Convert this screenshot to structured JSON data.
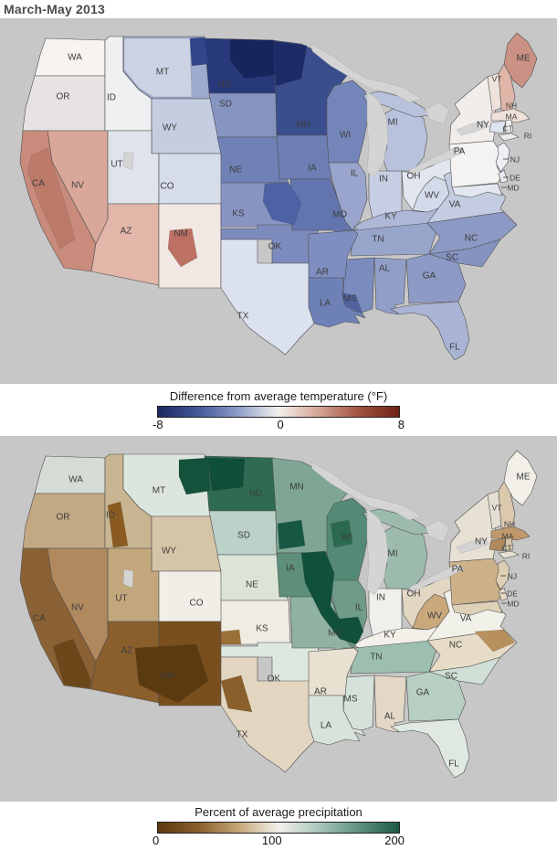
{
  "title": "March-May 2013",
  "colors": {
    "page_background": "#ffffff",
    "map_background": "#c7c7c7",
    "water": "#d4d4d4",
    "state_border": "#4e4e4e",
    "label_text": "#3d3d3d"
  },
  "maps": [
    {
      "id": "temperature",
      "legend": {
        "title": "Difference from average temperature (°F)",
        "ticks": [
          "-8",
          "0",
          "8"
        ],
        "gradient": [
          "#1c2a5e",
          "#44589b",
          "#8d9cc9",
          "#f4f1ee",
          "#d3a392",
          "#a35341",
          "#6e2313"
        ]
      },
      "states": {
        "WA": "#f7f3f0",
        "OR": "#e7e3e3",
        "CA": "#c98b7c",
        "NV": "#d9a89b",
        "ID": "#eef0f2",
        "MT": "#9dabce",
        "WY": "#c5cde1",
        "UT": "#dfe3ec",
        "CO": "#d6dcea",
        "AZ": "#e2b6a9",
        "NM": "#f2e8e3",
        "ND": "#27397a",
        "SD": "#8694c2",
        "NE": "#7081b6",
        "KS": "#8895c4",
        "OK": "#7b8bbd",
        "TX": "#dce1ee",
        "MN": "#3a4d8d",
        "IA": "#6c7eb4",
        "MO": "#6375ae",
        "AR": "#7e8ec0",
        "LA": "#6e81b7",
        "WI": "#7485b9",
        "IL": "#99a5cc",
        "MI": "#b9c2dc",
        "IN": "#c6cee3",
        "OH": "#e2e6f0",
        "KY": "#aeb8d6",
        "TN": "#98a5cb",
        "MS": "#7a8bbe",
        "AL": "#919fc8",
        "GA": "#8c9ac5",
        "FL": "#aab4d5",
        "SC": "#8593c1",
        "NC": "#8c99c4",
        "VA": "#c3cce1",
        "WV": "#d3daea",
        "PA": "#f4f3f2",
        "NY": "#f1edeb",
        "VT": "#efe2dc",
        "NH": "#dfb5a8",
        "ME": "#cb9184",
        "MA": "#efe0da",
        "CT": "#dde2ee",
        "RI": "#f2efed",
        "NJ": "#edeff5",
        "DE": "#e7eaf2",
        "MD": "#e3e7f0"
      },
      "patches": {
        "t_mt_w": "#ccd3e5",
        "t_mt_ne": "#31458a",
        "t_nd_e": "#17255f",
        "t_mn_nw": "#1d2c69",
        "t_ks_ne": "#4d61a4",
        "t_la_se": "#51629f",
        "t_nm_c": "#bd7164",
        "t_ca_i": "#bd7a69"
      },
      "labels": [
        "WA",
        "OR",
        "CA",
        "NV",
        "ID",
        "MT",
        "WY",
        "UT",
        "CO",
        "AZ",
        "NM",
        "ND",
        "SD",
        "NE",
        "KS",
        "OK",
        "TX",
        "MN",
        "IA",
        "MO",
        "AR",
        "LA",
        "MS",
        "AL",
        "WI",
        "IL",
        "MI",
        "IN",
        "OH",
        "KY",
        "TN",
        "GA",
        "FL",
        "SC",
        "NC",
        "VA",
        "WV",
        "PA",
        "NY",
        "VT",
        "NH",
        "ME",
        "MA",
        "CT",
        "RI",
        "NJ",
        "DE",
        "MD"
      ]
    },
    {
      "id": "precipitation",
      "legend": {
        "title": "Percent of average precipitation",
        "ticks": [
          "0",
          "100",
          "200"
        ],
        "gradient": [
          "#5c3a10",
          "#8a5f2c",
          "#c4a574",
          "#f2f0ea",
          "#a8c6ba",
          "#5f9282",
          "#1c5a45"
        ]
      },
      "states": {
        "WA": "#d5dcd4",
        "OR": "#c2a883",
        "CA": "#8a6134",
        "NV": "#b08a5e",
        "ID": "#c9b592",
        "MT": "#dde6de",
        "WY": "#d6c4a8",
        "UT": "#c2a77c",
        "CO": "#f1eee8",
        "AZ": "#8a5f2c",
        "NM": "#7a4f1e",
        "ND": "#2e6b52",
        "SD": "#bcd2c8",
        "NE": "#dce4d8",
        "KS": "#f0ece2",
        "OK": "#dfe8df",
        "TX": "#e2d6c1",
        "MN": "#7fa694",
        "IA": "#5d8f7b",
        "MO": "#8fb2a2",
        "AR": "#e8e0d0",
        "LA": "#d8e3d9",
        "WI": "#548a75",
        "IL": "#6f9b88",
        "MI": "#9cbbad",
        "IN": "#edf0eb",
        "OH": "#e2d7c3",
        "KY": "#f2f0e8",
        "TN": "#9dbfb0",
        "MS": "#d5e2d9",
        "AL": "#e2d8c5",
        "GA": "#b8cfc3",
        "FL": "#dfe9e2",
        "SC": "#cfdfd5",
        "NC": "#e7dcc7",
        "VA": "#f1f0e9",
        "WV": "#c9a87c",
        "PA": "#ccb189",
        "NY": "#e7e1d3",
        "VT": "#e3ded1",
        "NH": "#dbc8ad",
        "ME": "#f1efe7",
        "MA": "#c1986d",
        "CT": "#b08a5e",
        "RI": "#d8c5a7",
        "NJ": "#dfcfb3",
        "DE": "#e7dbc5",
        "MD": "#dfd1b7"
      },
      "patches": {
        "b_mt_ne": "#14523c",
        "b_nd_w": "#0f4e38",
        "b_mn_sw": "#175844",
        "b_ia_il": "#11503a",
        "b_wi_c": "#2a6850",
        "b_az_nm": "#5b3a10",
        "b_id_s": "#8a5a20",
        "b_wtx": "#8a5f2c",
        "b_ca_s": "#6b4719",
        "b_nc_ne": "#b8905e",
        "b_ks_sw": "#9a6f38"
      },
      "labels": [
        "WA",
        "OR",
        "CA",
        "NV",
        "ID",
        "MT",
        "WY",
        "UT",
        "CO",
        "AZ",
        "NM",
        "ND",
        "SD",
        "NE",
        "KS",
        "OK",
        "TX",
        "MN",
        "IA",
        "MO",
        "AR",
        "LA",
        "MS",
        "AL",
        "WI",
        "IL",
        "MI",
        "IN",
        "OH",
        "KY",
        "TN",
        "GA",
        "FL",
        "SC",
        "NC",
        "VA",
        "WV",
        "PA",
        "NY",
        "VT",
        "NH",
        "ME",
        "MA",
        "CT",
        "RI",
        "NJ",
        "DE",
        "MD"
      ]
    }
  ]
}
